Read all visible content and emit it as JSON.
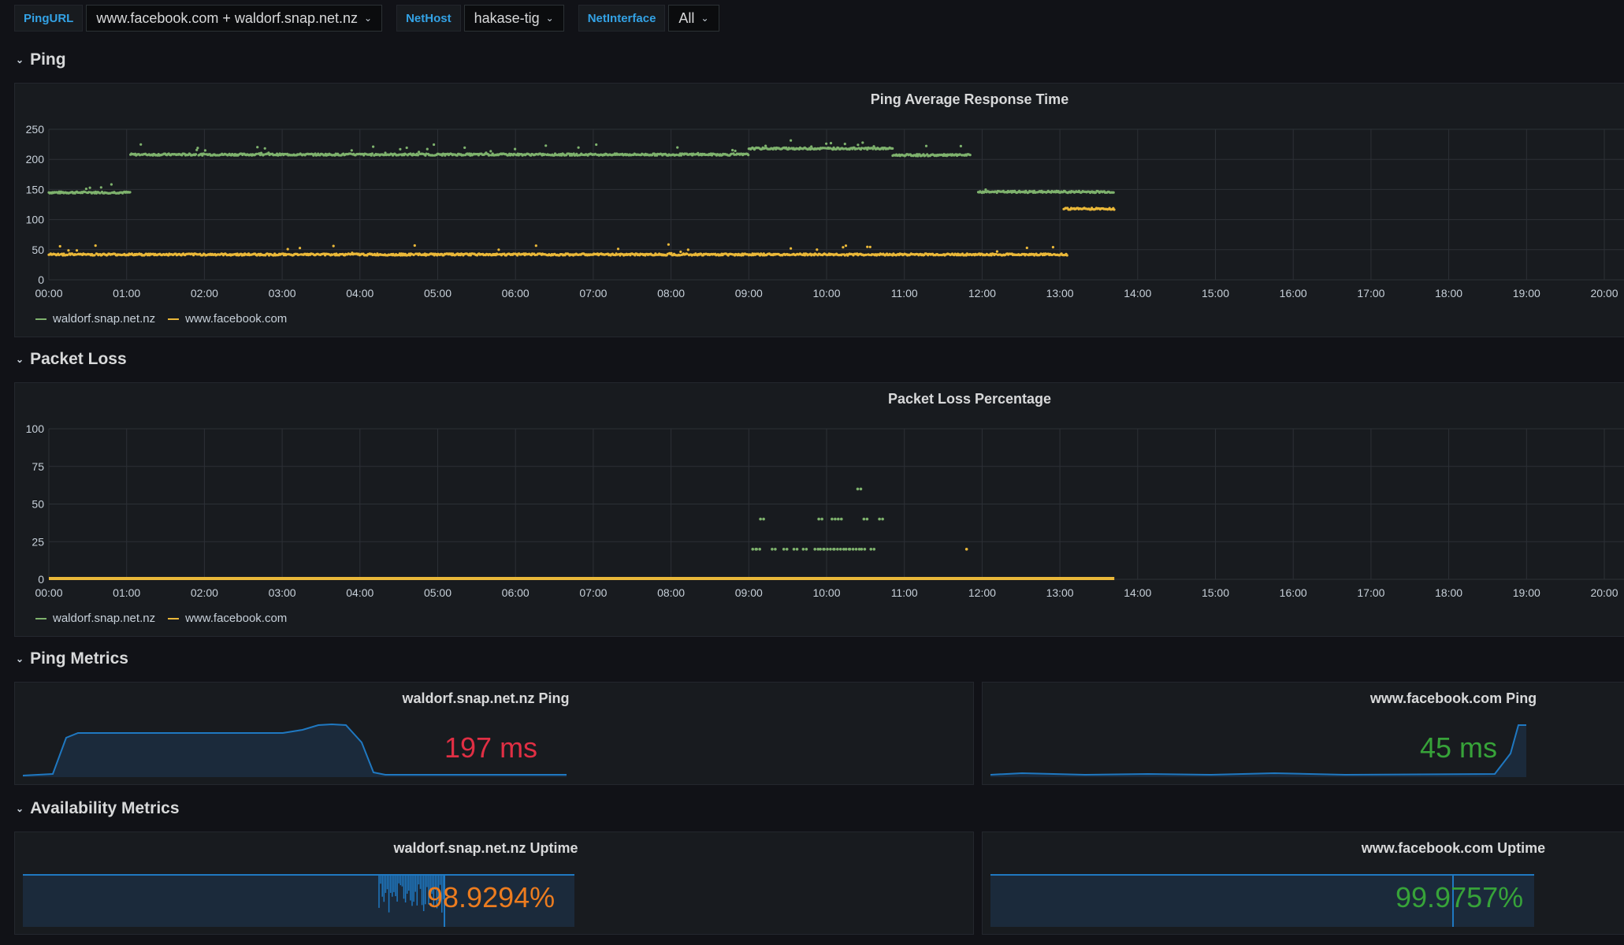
{
  "variables": [
    {
      "label": "PingURL",
      "value": "www.facebook.com + waldorf.snap.net.nz"
    },
    {
      "label": "NetHost",
      "value": "hakase-tig"
    },
    {
      "label": "NetInterface",
      "value": "All"
    }
  ],
  "rows": {
    "ping": "Ping",
    "packet_loss": "Packet Loss",
    "ping_metrics": "Ping Metrics",
    "availability": "Availability Metrics"
  },
  "colors": {
    "green": "#7eb26d",
    "yellow": "#eab839",
    "red": "#e02f44",
    "stat_green": "#37a339",
    "orange": "#ec7c1f",
    "blue": "#1f78c1"
  },
  "charts": {
    "ping_chart": {
      "title": "Ping Average Response Time",
      "yticks": [
        "250",
        "200",
        "150",
        "100",
        "50",
        "0"
      ],
      "xticks": [
        "00:00",
        "01:00",
        "02:00",
        "03:00",
        "04:00",
        "05:00",
        "06:00",
        "07:00",
        "08:00",
        "09:00",
        "10:00",
        "11:00",
        "12:00",
        "13:00",
        "14:00",
        "15:00",
        "16:00",
        "17:00",
        "18:00",
        "19:00",
        "20:00"
      ],
      "legend": [
        "waldorf.snap.net.nz",
        "www.facebook.com"
      ]
    },
    "loss_chart": {
      "title": "Packet Loss Percentage",
      "yticks": [
        "100",
        "75",
        "50",
        "25",
        "0"
      ],
      "xticks": [
        "00:00",
        "01:00",
        "02:00",
        "03:00",
        "04:00",
        "05:00",
        "06:00",
        "07:00",
        "08:00",
        "09:00",
        "10:00",
        "11:00",
        "12:00",
        "13:00",
        "14:00",
        "15:00",
        "16:00",
        "17:00",
        "18:00",
        "19:00",
        "20:00"
      ],
      "legend": [
        "waldorf.snap.net.nz",
        "www.facebook.com"
      ]
    }
  },
  "chart_data": [
    {
      "type": "scatter",
      "title": "Ping Average Response Time",
      "ylim": [
        0,
        250
      ],
      "x_range_hours": [
        0,
        20
      ],
      "series": [
        {
          "name": "waldorf.snap.net.nz",
          "segments": [
            {
              "from": 0.0,
              "to": 1.05,
              "y": 145
            },
            {
              "from": 1.05,
              "to": 9.0,
              "y": 208
            },
            {
              "from": 9.0,
              "to": 10.85,
              "y": 218
            },
            {
              "from": 10.85,
              "to": 11.85,
              "y": 207
            },
            {
              "from": 11.95,
              "to": 13.7,
              "y": 146
            }
          ]
        },
        {
          "name": "www.facebook.com",
          "segments": [
            {
              "from": 0.0,
              "to": 13.1,
              "y": 42
            },
            {
              "from": 13.05,
              "to": 13.7,
              "y": 118
            }
          ]
        }
      ]
    },
    {
      "type": "scatter",
      "title": "Packet Loss Percentage",
      "ylim": [
        0,
        100
      ],
      "x_range_hours": [
        0,
        20
      ],
      "series": [
        {
          "name": "waldorf.snap.net.nz",
          "points": [
            [
              9.05,
              20
            ],
            [
              9.1,
              20
            ],
            [
              9.15,
              40
            ],
            [
              9.3,
              20
            ],
            [
              9.45,
              20
            ],
            [
              9.58,
              20
            ],
            [
              9.7,
              20
            ],
            [
              9.85,
              20
            ],
            [
              9.9,
              40
            ],
            [
              9.92,
              20
            ],
            [
              9.97,
              20
            ],
            [
              10.05,
              20
            ],
            [
              10.07,
              40
            ],
            [
              10.1,
              20
            ],
            [
              10.15,
              40
            ],
            [
              10.18,
              20
            ],
            [
              10.25,
              20
            ],
            [
              10.3,
              20
            ],
            [
              10.38,
              20
            ],
            [
              10.4,
              60
            ],
            [
              10.45,
              20
            ],
            [
              10.48,
              40
            ],
            [
              10.57,
              20
            ],
            [
              10.68,
              40
            ]
          ]
        },
        {
          "name": "www.facebook.com",
          "points": [
            [
              11.8,
              20
            ]
          ],
          "baseline": {
            "from": 0,
            "to": 13.7,
            "y": 0
          }
        }
      ]
    }
  ],
  "stats": {
    "waldorf_ping": {
      "title": "waldorf.snap.net.nz Ping",
      "value": "197 ms"
    },
    "facebook_ping": {
      "title": "www.facebook.com Ping",
      "value": "45 ms"
    },
    "waldorf_uptime": {
      "title": "waldorf.snap.net.nz Uptime",
      "value": "98.9294%"
    },
    "facebook_uptime": {
      "title": "www.facebook.com Uptime",
      "value": "99.9757%"
    }
  }
}
